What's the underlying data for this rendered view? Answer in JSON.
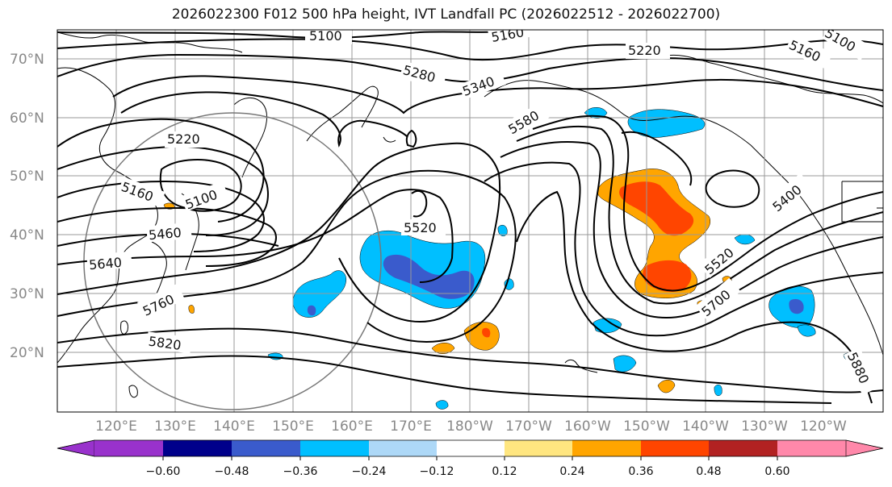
{
  "title": "2026022300 F012 500 hPa height, IVT Landfall PC (2026022512 - 2026022700)",
  "lat_labels": [
    "70°N",
    "60°N",
    "50°N",
    "40°N",
    "30°N",
    "20°N"
  ],
  "lon_labels": [
    "120°E",
    "130°E",
    "140°E",
    "150°E",
    "160°E",
    "170°E",
    "180°W",
    "170°W",
    "160°W",
    "150°W",
    "140°W",
    "130°W",
    "120°W"
  ],
  "contour_labels": [
    "5100",
    "5160",
    "5220",
    "5280",
    "5340",
    "5580",
    "5220",
    "5160",
    "5100",
    "5160",
    "5100",
    "5460",
    "5640",
    "5760",
    "5820",
    "5520",
    "5400",
    "5520",
    "5700",
    "5880"
  ],
  "colorbar": {
    "ticks": [
      "−0.60",
      "−0.48",
      "−0.36",
      "−0.24",
      "−0.12",
      "0.12",
      "0.24",
      "0.36",
      "0.48",
      "0.60"
    ],
    "colors": [
      "#9932cc",
      "#00008b",
      "#3a5bcc",
      "#00bfff",
      "#add8f7",
      "#ffffff",
      "#ffe680",
      "#ffa500",
      "#ff4500",
      "#b22222",
      "#ff88aa"
    ]
  },
  "colors": {
    "neg_dark": "#3a5bcc",
    "neg": "#00bfff",
    "neg_light": "#add8f7",
    "pos_light": "#ffe680",
    "pos": "#ffa500",
    "pos_dark": "#ff4500",
    "contour": "#000000",
    "grid": "#999999",
    "circle": "#777777"
  }
}
